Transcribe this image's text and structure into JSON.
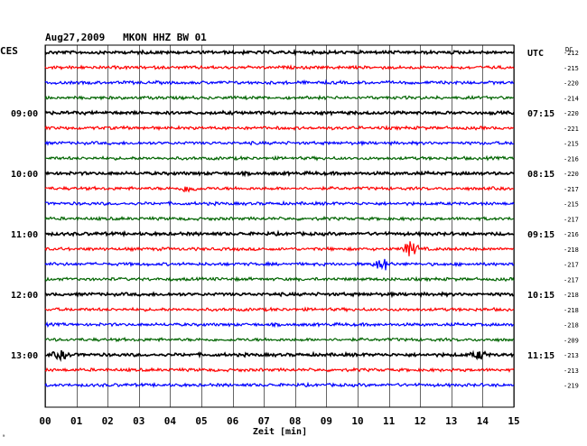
{
  "chart_data": {
    "type": "line",
    "title": "Aug27,2009   MKON HHZ BW 01",
    "left_timezone": "CES",
    "right_timezone": "UTC",
    "dc_label": "DC",
    "xlabel": "Zeit [min]",
    "xlim": [
      0,
      15
    ],
    "x_ticks": [
      "00",
      "01",
      "02",
      "03",
      "04",
      "05",
      "06",
      "07",
      "08",
      "09",
      "10",
      "11",
      "12",
      "13",
      "14",
      "15"
    ],
    "grid": true,
    "trace_colors": [
      "#000000",
      "#ff0000",
      "#0000ff",
      "#006400"
    ],
    "left_hour_labels": [
      {
        "row": 4,
        "label": "09:00"
      },
      {
        "row": 8,
        "label": "10:00"
      },
      {
        "row": 12,
        "label": "11:00"
      },
      {
        "row": 16,
        "label": "12:00"
      },
      {
        "row": 20,
        "label": "13:00"
      }
    ],
    "right_hour_labels": [
      {
        "row": 0,
        "label": "UTC"
      },
      {
        "row": 4,
        "label": "07:15"
      },
      {
        "row": 8,
        "label": "08:15"
      },
      {
        "row": 12,
        "label": "09:15"
      },
      {
        "row": 16,
        "label": "10:15"
      },
      {
        "row": 20,
        "label": "11:15"
      }
    ],
    "dc_values": [
      -212,
      -215,
      -220,
      -214,
      -220,
      -221,
      -215,
      -216,
      -220,
      -217,
      -215,
      -217,
      -216,
      -218,
      -217,
      -217,
      -218,
      -218,
      -218,
      -209,
      -213,
      -213,
      -219
    ],
    "events": [
      {
        "row": 9,
        "minute": 4.6,
        "amplitude": 4
      },
      {
        "row": 13,
        "minute": 11.7,
        "amplitude": 8
      },
      {
        "row": 14,
        "minute": 10.8,
        "amplitude": 7
      },
      {
        "row": 20,
        "minute": 0.5,
        "amplitude": 4
      },
      {
        "row": 20,
        "minute": 13.9,
        "amplitude": 4
      }
    ],
    "footer_mark": "ᵃ"
  }
}
